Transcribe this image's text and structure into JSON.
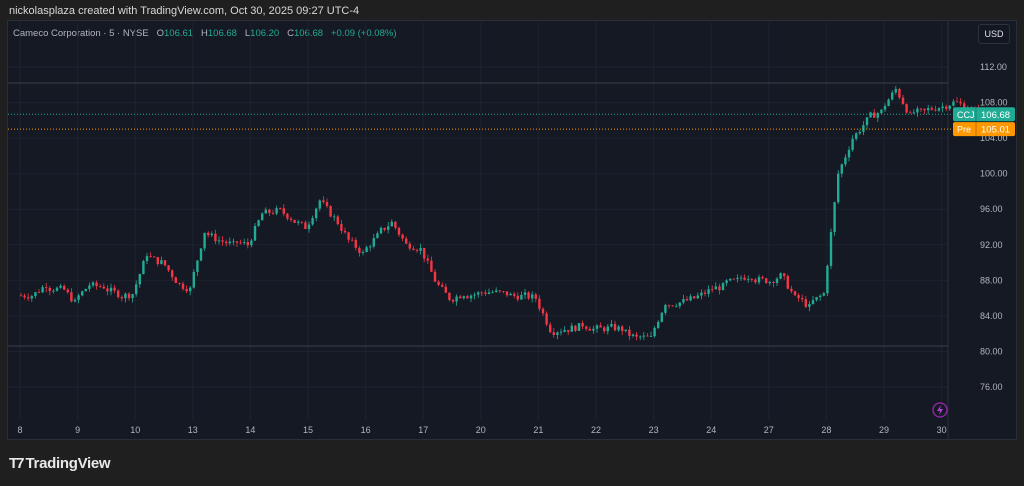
{
  "caption": "nickolasplaza created with TradingView.com, Oct 30, 2025 09:27 UTC-4",
  "legend": {
    "symbol": "Cameco Corporation · 5 · NYSE",
    "o_label": "O",
    "o": "106.61",
    "h_label": "H",
    "h": "106.68",
    "l_label": "L",
    "l": "106.20",
    "c_label": "C",
    "c": "106.68",
    "change": "+0.09 (+0.08%)"
  },
  "currency_button": "USD",
  "brand": "TradingView",
  "colors": {
    "up": "#22ab94",
    "down": "#f23645",
    "pre": "#ff9800",
    "background": "#151924"
  },
  "chart_data": {
    "type": "candlestick",
    "ylim": [
      73,
      114
    ],
    "y_ticks": [
      "112.00",
      "108.00",
      "104.00",
      "100.00",
      "96.00",
      "92.00",
      "88.00",
      "84.00",
      "80.00",
      "76.00"
    ],
    "x_ticks": [
      "8",
      "9",
      "10",
      "13",
      "14",
      "15",
      "16",
      "17",
      "20",
      "21",
      "22",
      "23",
      "24",
      "27",
      "28",
      "29",
      "30"
    ],
    "grid": true,
    "price_labels": [
      {
        "label": "CCJ",
        "value": "106.68",
        "color": "#22ab94"
      },
      {
        "label": "Pre",
        "value": "105.01",
        "color": "#ff9800"
      }
    ],
    "closes_by_session": [
      [
        86.3,
        87.5,
        87.0,
        85.5
      ],
      [
        87.5,
        87.3,
        86.5,
        86.5
      ],
      [
        91.0,
        90.0,
        88.0,
        87.0
      ],
      [
        93.5,
        92.5,
        92.0,
        92.0
      ],
      [
        95.5,
        95.8,
        95.0,
        94.0
      ],
      [
        97.0,
        95.0,
        92.5,
        91.0
      ],
      [
        93.0,
        94.5,
        92.0,
        91.5
      ],
      [
        88.0,
        86.0,
        86.5,
        86.5
      ],
      [
        86.7,
        86.5,
        86.2,
        86.0
      ],
      [
        82.5,
        82.5,
        82.8,
        82.5
      ],
      [
        82.6,
        82.5,
        81.5,
        81.5
      ],
      [
        85.5,
        85.5,
        86.0,
        86.8
      ],
      [
        87.3,
        88.0,
        88.5,
        88.0
      ],
      [
        88.5,
        86.0,
        85.0,
        86.5
      ],
      [
        100.0,
        104.0,
        106.0,
        107.0
      ],
      [
        109.5,
        106.5,
        107.0,
        107.5
      ],
      [
        108.0,
        107.5,
        106.68
      ]
    ]
  }
}
